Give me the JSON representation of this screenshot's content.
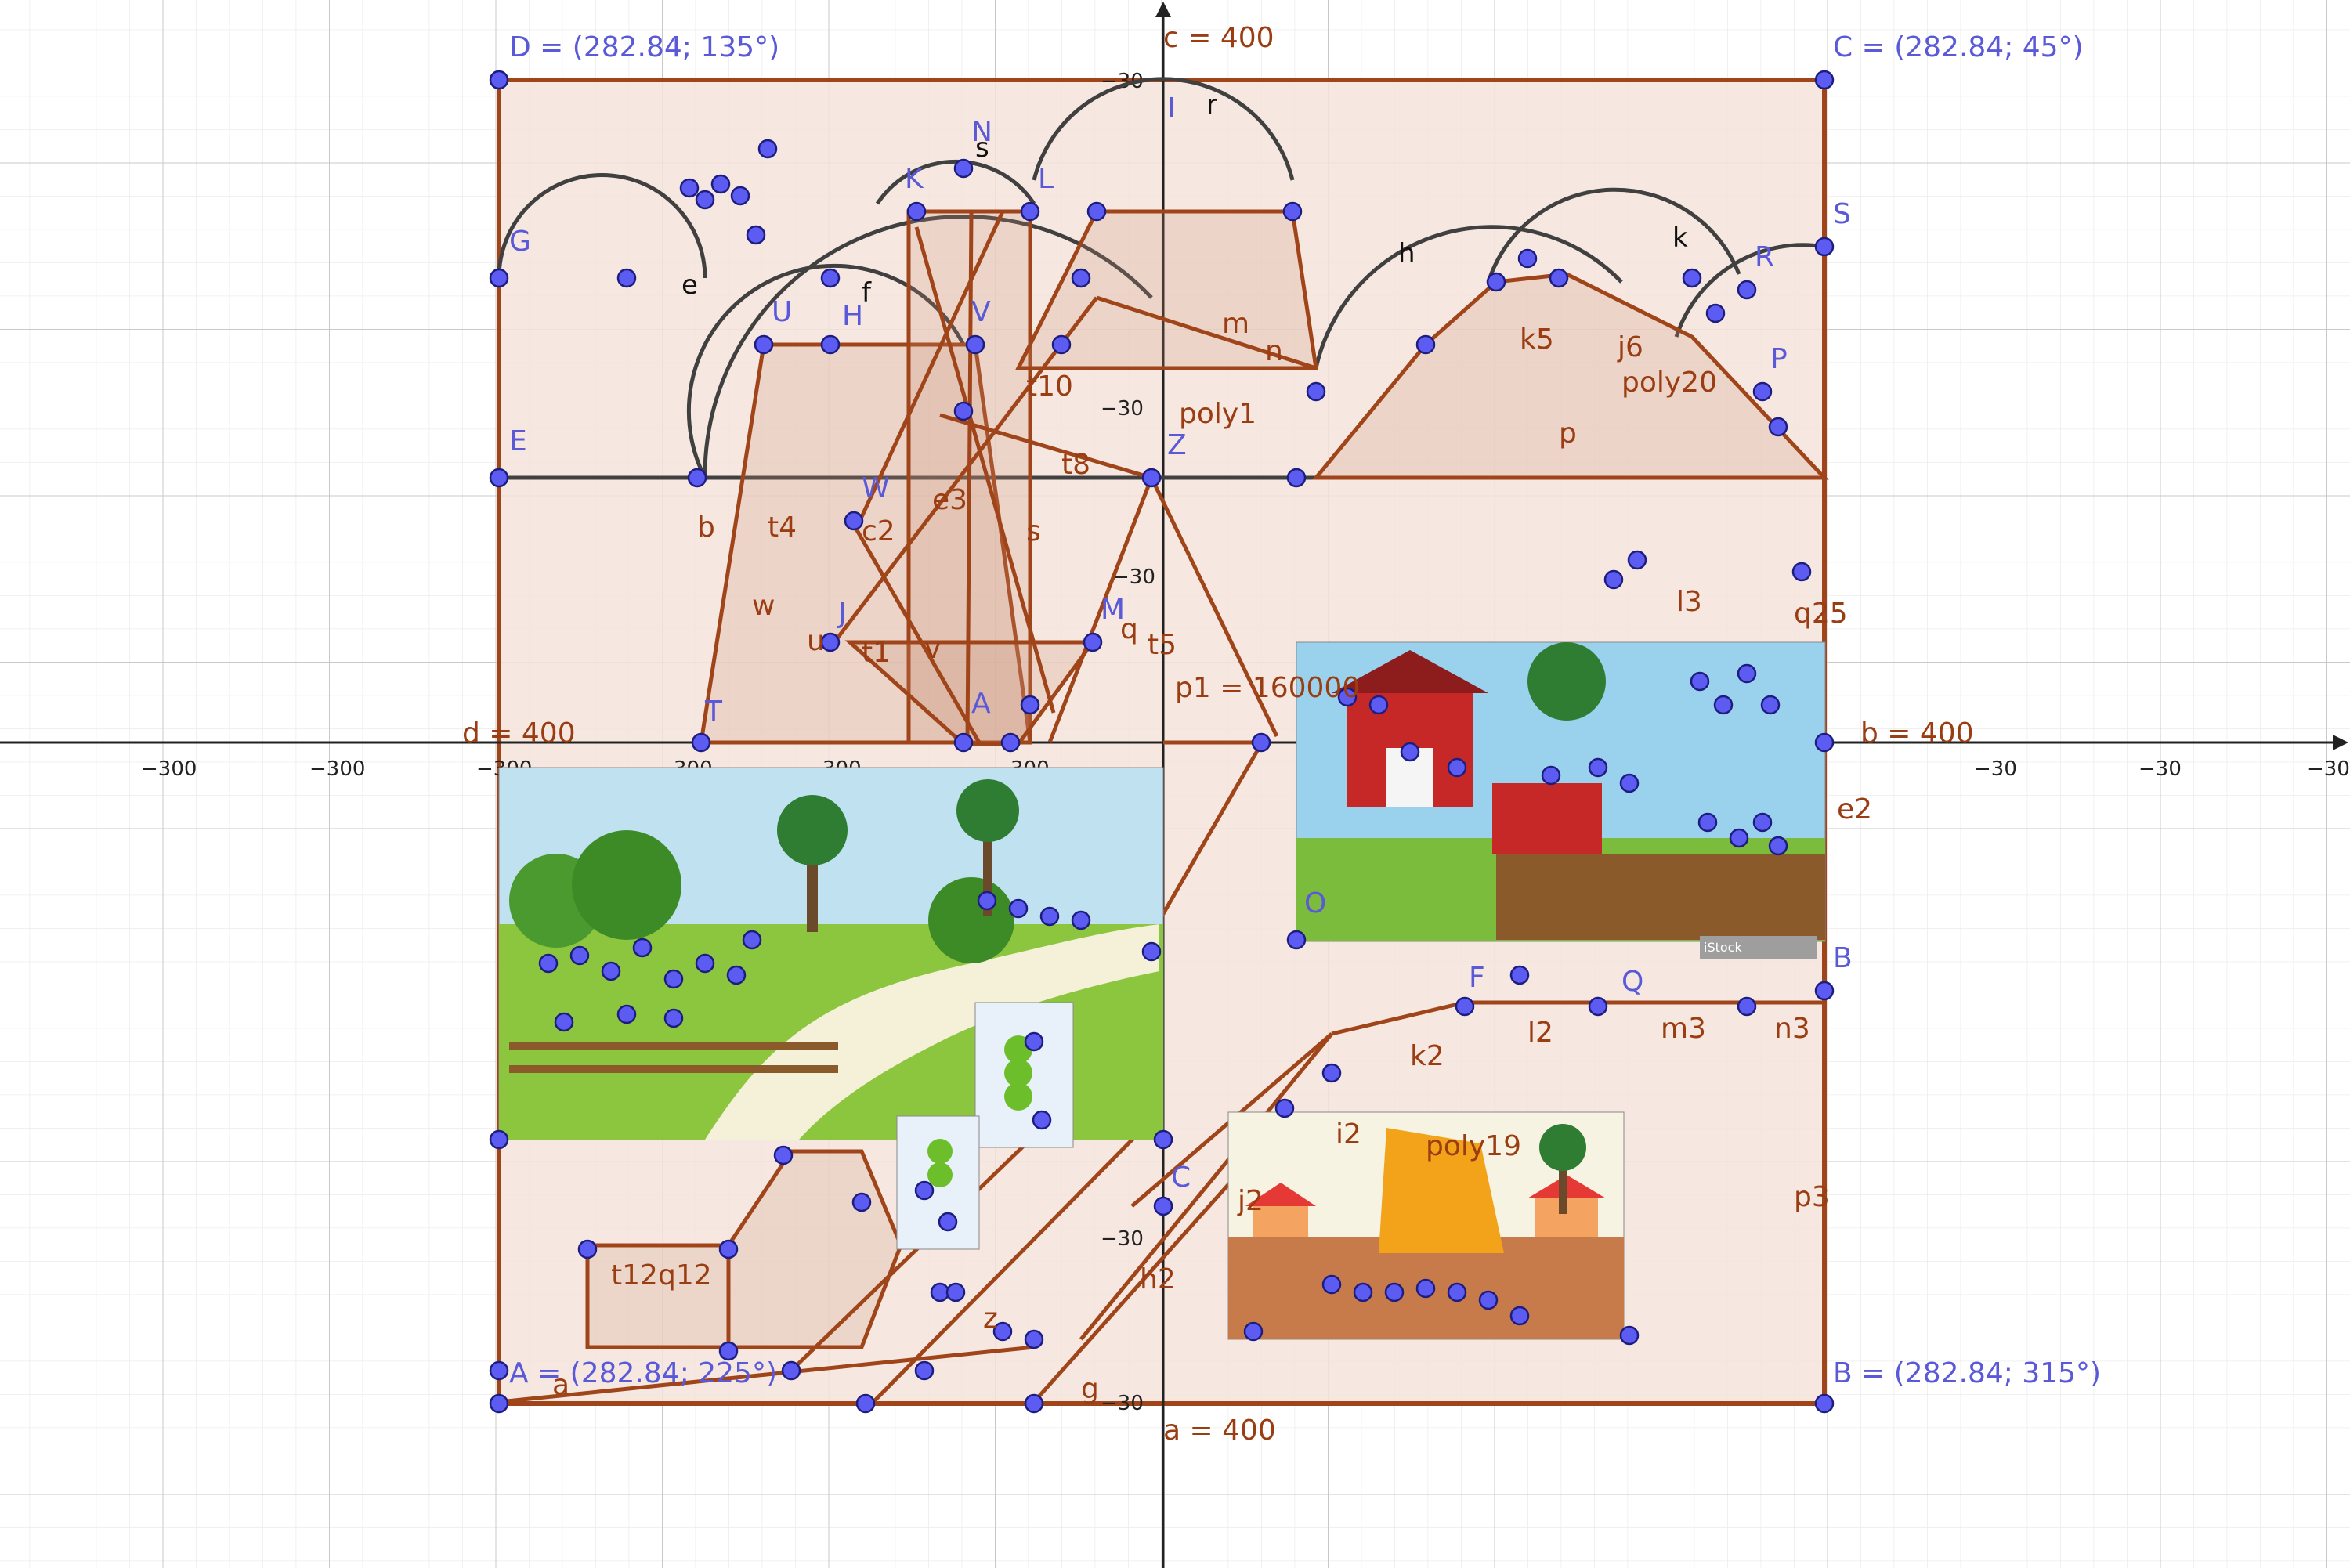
{
  "app": {
    "name": "GeoGebra Graphing View"
  },
  "axes": {
    "x_ticks": [
      "−300",
      "−300",
      "−300",
      "300",
      "300",
      "300",
      "−30",
      "−30",
      "−30"
    ],
    "y_ticks": [
      "−30",
      "−30",
      "−30",
      "−30",
      "−30"
    ],
    "x_axis_label_left": "d = 400",
    "x_axis_label_right": "b = 400",
    "y_axis_label_top": "c = 400",
    "y_axis_label_bottom": "a = 400"
  },
  "corner_points": [
    {
      "id": "D",
      "label": "D = (282.84; 135°)"
    },
    {
      "id": "C",
      "label": "C = (282.84; 45°)"
    },
    {
      "id": "A",
      "label": "A = (282.84; 225°)"
    },
    {
      "id": "B",
      "label": "B = (282.84; 315°)"
    }
  ],
  "annotations": {
    "poly1": "poly1",
    "poly20": "poly20",
    "poly19": "poly19",
    "p1": "p1 = 160000",
    "h": "h",
    "k": "k",
    "r": "r",
    "s": "s",
    "e": "e",
    "f": "f"
  },
  "images": [
    {
      "name": "river-landscape-painting",
      "caption": ""
    },
    {
      "name": "farm-barn-illustration",
      "caption": "iStock"
    },
    {
      "name": "boat-village-painting",
      "caption": ""
    },
    {
      "name": "caterpillar-image-1",
      "caption": ""
    },
    {
      "name": "caterpillar-image-2",
      "caption": ""
    }
  ],
  "point_labels": [
    "G",
    "E",
    "U",
    "H",
    "K",
    "N",
    "L",
    "V",
    "J",
    "W",
    "M",
    "Z",
    "T",
    "A",
    "S",
    "F",
    "O",
    "P",
    "R",
    "Q",
    "B",
    "I",
    "C"
  ],
  "segment_labels": [
    "b",
    "t4",
    "w",
    "c2",
    "e3",
    "s",
    "j6",
    "k5",
    "m",
    "n",
    "p",
    "t10",
    "t8",
    "t5",
    "t1",
    "u",
    "v",
    "q",
    "i2",
    "j2",
    "k2",
    "l2",
    "g",
    "p3",
    "n3",
    "m3",
    "h2",
    "e2",
    "q12",
    "t12",
    "a",
    "z",
    "l3",
    "q25"
  ],
  "colors": {
    "grid_major": "#c8c8c8",
    "grid_minor": "#e8e8e8",
    "polygon_fill": "#f3e2d8",
    "polygon_stroke": "#a0451a",
    "point_fill": "#5c5cf2",
    "label_blue": "#5a5ad8",
    "label_brown": "#9b3d12",
    "arc_stroke": "#404040"
  }
}
